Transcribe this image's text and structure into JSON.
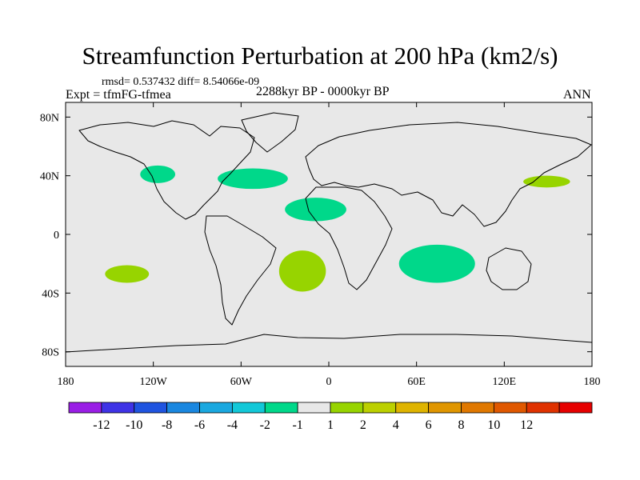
{
  "title": "Streamfunction Perturbation at 200 hPa (km2/s)",
  "stats_text": "rmsd= 0.537432 diff= 8.54066e-09",
  "experiment_text": "Expt = tfmFG-tfmea",
  "period_text": "2288kyr BP - 0000kyr BP",
  "season_text": "ANN",
  "map": {
    "projection": "cylindrical equidistant",
    "lon_range": [
      -180,
      180
    ],
    "lat_range": [
      -90,
      90
    ],
    "lon_ticks": [
      {
        "value": -180,
        "label": "180"
      },
      {
        "value": -120,
        "label": "120W"
      },
      {
        "value": -60,
        "label": "60W"
      },
      {
        "value": 0,
        "label": "0"
      },
      {
        "value": 60,
        "label": "60E"
      },
      {
        "value": 120,
        "label": "120E"
      },
      {
        "value": 180,
        "label": "180"
      }
    ],
    "lat_ticks": [
      {
        "value": 80,
        "label": "80N"
      },
      {
        "value": 40,
        "label": "40N"
      },
      {
        "value": 0,
        "label": "0"
      },
      {
        "value": -40,
        "label": "40S"
      },
      {
        "value": -80,
        "label": "80S"
      }
    ],
    "background_color": "#e8e8e8",
    "regions": [
      {
        "name": "north-america-west-negative",
        "level": "-1",
        "color": "#00d88a",
        "center": [
          -117,
          41
        ],
        "rx": 12,
        "ry": 6
      },
      {
        "name": "north-atlantic-negative",
        "level": "-1",
        "color": "#00d88a",
        "center": [
          -52,
          38
        ],
        "rx": 24,
        "ry": 7
      },
      {
        "name": "africa-north-negative",
        "level": "-1",
        "color": "#00d88a",
        "center": [
          -9,
          17
        ],
        "rx": 21,
        "ry": 8
      },
      {
        "name": "indian-ocean-negative",
        "level": "-1",
        "color": "#00d88a",
        "center": [
          74,
          -20
        ],
        "rx": 26,
        "ry": 13
      },
      {
        "name": "south-pacific-positive",
        "level": "1",
        "color": "#97d400",
        "center": [
          -138,
          -27
        ],
        "rx": 15,
        "ry": 6
      },
      {
        "name": "south-atlantic-positive",
        "level": "1",
        "color": "#97d400",
        "center": [
          -18,
          -25
        ],
        "rx": 16,
        "ry": 14
      },
      {
        "name": "north-pacific-positive",
        "level": "1",
        "color": "#97d400",
        "center": [
          149,
          36
        ],
        "rx": 16,
        "ry": 4
      }
    ]
  },
  "colorbar": {
    "colors": [
      "#9a1ee6",
      "#3f33e6",
      "#1f54e0",
      "#1a87e0",
      "#1aa8e0",
      "#12c8d8",
      "#00d88a",
      "#e8e8e8",
      "#97d400",
      "#bcd000",
      "#dfb400",
      "#e09600",
      "#e07800",
      "#e05800",
      "#e03200",
      "#e60000"
    ],
    "labels": [
      "-12",
      "-10",
      "-8",
      "-6",
      "-4",
      "-2",
      "-1",
      "1",
      "2",
      "4",
      "6",
      "8",
      "10",
      "12"
    ]
  }
}
